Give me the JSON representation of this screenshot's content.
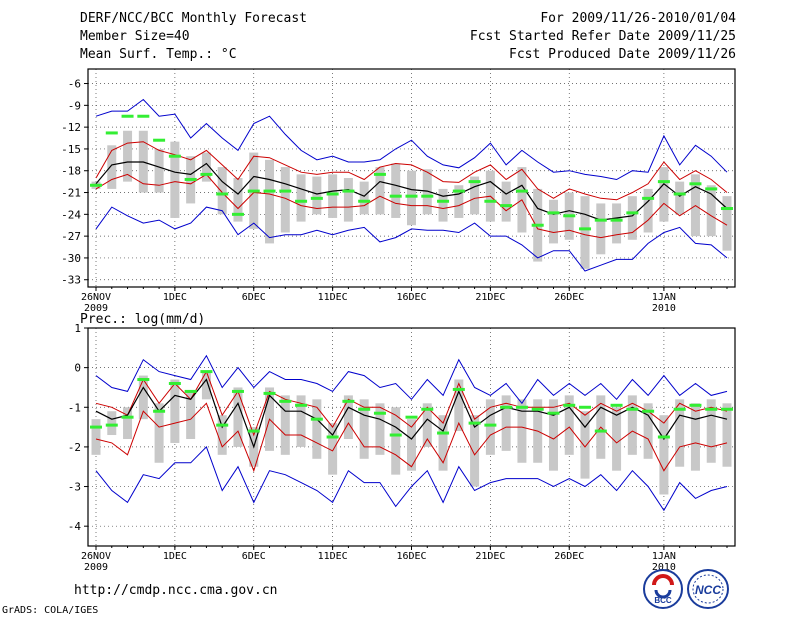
{
  "header": {
    "title": "DERF/NCC/BCC Monthly Forecast",
    "member_size": "Member Size=40",
    "variable1": "Mean Surf. Temp.: °C",
    "forecast_period": "For 2009/11/26-2010/01/04",
    "started_date": "Fcst Started Refer Date 2009/11/25",
    "produced_date": "Fcst Produced Date 2009/11/26"
  },
  "footer": {
    "url": "http://cmdp.ncc.cma.gov.cn",
    "grads_credit": "GrADS: COLA/IGES",
    "logo_bcc": "BCC",
    "logo_ncc": "NCC"
  },
  "colors": {
    "envelope": "#0000cc",
    "spread": "#cc0000",
    "mean": "#000000",
    "box": "#c8c8c8",
    "median": "#33ee33"
  },
  "chart_data": [
    {
      "type": "line",
      "title": "Mean Surf. Temp.: °C",
      "x_labels": [
        {
          "i": 0,
          "l1": "26NOV",
          "l2": "2009"
        },
        {
          "i": 5,
          "l1": "1DEC",
          "l2": ""
        },
        {
          "i": 10,
          "l1": "6DEC",
          "l2": ""
        },
        {
          "i": 15,
          "l1": "11DEC",
          "l2": ""
        },
        {
          "i": 20,
          "l1": "16DEC",
          "l2": ""
        },
        {
          "i": 25,
          "l1": "21DEC",
          "l2": ""
        },
        {
          "i": 30,
          "l1": "26DEC",
          "l2": ""
        },
        {
          "i": 36,
          "l1": "1JAN",
          "l2": "2010"
        }
      ],
      "yticks": [
        -6,
        -9,
        -12,
        -15,
        -18,
        -21,
        -24,
        -27,
        -30,
        -33
      ],
      "ylim": [
        -34,
        -4
      ],
      "series": [
        {
          "name": "max",
          "color": "#0000cc",
          "values": [
            -10.5,
            -9.8,
            -9.8,
            -8.2,
            -10.5,
            -10.2,
            -13.5,
            -11.5,
            -13.5,
            -15.2,
            -11.5,
            -10.5,
            -13.0,
            -15.2,
            -16.5,
            -16.0,
            -16.8,
            -16.8,
            -16.5,
            -15.0,
            -13.8,
            -16.0,
            -17.2,
            -17.6,
            -16.2,
            -14.2,
            -17.2,
            -15.2,
            -16.8,
            -18.2,
            -18.0,
            -18.5,
            -18.8,
            -19.2,
            -18.0,
            -18.2,
            -13.2,
            -17.2,
            -14.5,
            -16.0,
            -18.2
          ]
        },
        {
          "name": "upper",
          "color": "#cc0000",
          "values": [
            -19.0,
            -15.2,
            -14.2,
            -14.0,
            -15.2,
            -15.8,
            -16.5,
            -15.2,
            -17.2,
            -19.2,
            -16.0,
            -16.2,
            -17.2,
            -18.2,
            -18.5,
            -18.2,
            -18.2,
            -19.2,
            -17.5,
            -17.0,
            -17.2,
            -18.2,
            -19.5,
            -19.6,
            -18.2,
            -17.2,
            -19.2,
            -17.8,
            -20.5,
            -21.8,
            -20.5,
            -21.2,
            -21.8,
            -22.0,
            -21.0,
            -19.8,
            -16.8,
            -19.2,
            -18.0,
            -19.2,
            -21.0
          ]
        },
        {
          "name": "mean",
          "color": "#000000",
          "values": [
            -19.8,
            -17.2,
            -16.8,
            -16.8,
            -17.5,
            -18.2,
            -18.5,
            -17.0,
            -19.5,
            -21.2,
            -18.8,
            -19.2,
            -19.8,
            -20.5,
            -21.2,
            -20.8,
            -20.6,
            -21.5,
            -19.5,
            -20.0,
            -20.6,
            -20.8,
            -21.5,
            -21.2,
            -20.2,
            -19.5,
            -21.2,
            -20.0,
            -23.2,
            -24.0,
            -23.5,
            -24.0,
            -24.8,
            -24.5,
            -24.2,
            -22.2,
            -19.8,
            -21.5,
            -20.2,
            -21.2,
            -23.2
          ]
        },
        {
          "name": "lower",
          "color": "#cc0000",
          "values": [
            -20.5,
            -19.2,
            -18.5,
            -19.8,
            -20.0,
            -19.5,
            -19.8,
            -18.5,
            -21.0,
            -23.2,
            -21.0,
            -21.2,
            -21.8,
            -22.8,
            -23.2,
            -23.0,
            -23.0,
            -22.8,
            -21.5,
            -22.5,
            -22.8,
            -22.8,
            -23.2,
            -22.8,
            -21.8,
            -21.5,
            -23.5,
            -22.0,
            -26.0,
            -26.5,
            -26.2,
            -26.8,
            -27.2,
            -26.8,
            -26.5,
            -24.8,
            -22.5,
            -24.2,
            -22.8,
            -24.2,
            -25.5
          ]
        },
        {
          "name": "min",
          "color": "#0000cc",
          "values": [
            -26.0,
            -23.0,
            -24.2,
            -25.2,
            -24.8,
            -26.0,
            -25.2,
            -23.0,
            -23.5,
            -26.8,
            -25.2,
            -27.2,
            -26.8,
            -26.8,
            -26.2,
            -26.8,
            -26.2,
            -25.8,
            -27.8,
            -27.2,
            -26.0,
            -26.2,
            -26.2,
            -26.5,
            -25.2,
            -27.0,
            -27.0,
            -28.2,
            -30.0,
            -29.0,
            -29.0,
            -31.8,
            -31.0,
            -30.2,
            -30.2,
            -28.0,
            -26.5,
            -25.8,
            -28.0,
            -28.2,
            -30.0
          ]
        },
        {
          "name": "box_top",
          "values": [
            -19.5,
            -14.5,
            -12.5,
            -12.5,
            -15.0,
            -14.0,
            -16.0,
            -15.5,
            -17.5,
            -19.0,
            -15.5,
            -16.5,
            -17.5,
            -18.5,
            -18.8,
            -18.5,
            -19.0,
            -19.5,
            -17.5,
            -17.0,
            -18.0,
            -17.8,
            -20.5,
            -20.0,
            -18.8,
            -18.0,
            -19.5,
            -17.5,
            -20.5,
            -22.0,
            -21.0,
            -21.5,
            -22.5,
            -22.5,
            -21.5,
            -20.5,
            -17.5,
            -19.5,
            -18.5,
            -20.0,
            -21.5
          ]
        },
        {
          "name": "box_bottom",
          "values": [
            -20.5,
            -20.5,
            -19.5,
            -21.0,
            -21.0,
            -24.5,
            -22.5,
            -19.5,
            -24.0,
            -25.0,
            -26.0,
            -28.0,
            -26.5,
            -25.0,
            -24.0,
            -24.5,
            -25.0,
            -24.0,
            -24.0,
            -24.5,
            -25.5,
            -24.0,
            -25.0,
            -24.5,
            -24.0,
            -25.0,
            -25.0,
            -26.5,
            -30.5,
            -28.0,
            -27.5,
            -31.5,
            -29.5,
            -28.0,
            -27.5,
            -26.5,
            -25.0,
            -24.0,
            -27.0,
            -27.0,
            -29.0
          ]
        },
        {
          "name": "median",
          "values": [
            -20.0,
            -12.8,
            -10.5,
            -10.5,
            -13.8,
            -16.0,
            -19.2,
            -18.5,
            -21.2,
            -24.0,
            -20.8,
            -20.8,
            -20.8,
            -22.2,
            -21.8,
            -21.2,
            -20.8,
            -22.2,
            -18.5,
            -21.5,
            -21.5,
            -21.5,
            -22.2,
            -20.8,
            -19.5,
            -22.2,
            -22.8,
            -20.8,
            -25.5,
            -23.8,
            -24.2,
            -26.0,
            -24.8,
            -24.8,
            -23.8,
            -21.8,
            -19.5,
            -21.2,
            -19.8,
            -20.5,
            -23.2
          ]
        }
      ]
    },
    {
      "type": "line",
      "title": "Prec.: log(mm/d)",
      "x_labels": [
        {
          "i": 0,
          "l1": "26NOV",
          "l2": "2009"
        },
        {
          "i": 5,
          "l1": "1DEC",
          "l2": ""
        },
        {
          "i": 10,
          "l1": "6DEC",
          "l2": ""
        },
        {
          "i": 15,
          "l1": "11DEC",
          "l2": ""
        },
        {
          "i": 20,
          "l1": "16DEC",
          "l2": ""
        },
        {
          "i": 25,
          "l1": "21DEC",
          "l2": ""
        },
        {
          "i": 30,
          "l1": "26DEC",
          "l2": ""
        },
        {
          "i": 36,
          "l1": "1JAN",
          "l2": "2010"
        }
      ],
      "yticks": [
        1,
        0,
        -1,
        -2,
        -3,
        -4
      ],
      "ylim": [
        -4.5,
        1
      ],
      "series": [
        {
          "name": "max",
          "color": "#0000cc",
          "values": [
            -0.2,
            -0.5,
            -0.6,
            0.2,
            -0.1,
            -0.2,
            -0.3,
            0.3,
            -0.5,
            0.0,
            -0.5,
            -0.1,
            -0.3,
            -0.3,
            -0.4,
            -0.6,
            -0.1,
            -0.2,
            -0.5,
            -0.4,
            -0.8,
            -0.3,
            -0.7,
            0.2,
            -0.5,
            -0.7,
            -0.4,
            -0.9,
            -0.3,
            -0.7,
            -0.4,
            -0.7,
            -0.4,
            -0.8,
            -0.3,
            -0.7,
            -0.2,
            -0.7,
            -0.4,
            -0.7,
            -0.6
          ]
        },
        {
          "name": "upper",
          "color": "#cc0000",
          "values": [
            -0.9,
            -1.0,
            -1.2,
            -0.3,
            -0.9,
            -0.4,
            -0.8,
            -0.1,
            -1.2,
            -0.6,
            -1.7,
            -0.6,
            -0.8,
            -0.9,
            -1.0,
            -1.5,
            -0.8,
            -1.0,
            -1.0,
            -1.2,
            -1.5,
            -1.0,
            -1.4,
            -0.4,
            -1.3,
            -1.0,
            -0.9,
            -1.0,
            -1.0,
            -1.0,
            -0.9,
            -1.2,
            -0.9,
            -1.1,
            -0.9,
            -1.1,
            -1.4,
            -0.9,
            -1.1,
            -1.0,
            -1.1
          ]
        },
        {
          "name": "mean",
          "color": "#000000",
          "values": [
            -1.1,
            -1.3,
            -1.2,
            -0.5,
            -1.1,
            -0.7,
            -0.8,
            -0.3,
            -1.5,
            -0.9,
            -2.0,
            -0.7,
            -1.1,
            -1.1,
            -1.3,
            -1.7,
            -1.0,
            -1.2,
            -1.3,
            -1.5,
            -1.8,
            -1.3,
            -1.6,
            -0.6,
            -1.5,
            -1.2,
            -1.0,
            -1.1,
            -1.1,
            -1.2,
            -1.0,
            -1.5,
            -1.0,
            -1.2,
            -1.0,
            -1.2,
            -1.8,
            -1.2,
            -1.3,
            -1.2,
            -1.3
          ]
        },
        {
          "name": "lower",
          "color": "#cc0000",
          "values": [
            -1.8,
            -1.9,
            -2.2,
            -1.1,
            -1.5,
            -1.4,
            -1.3,
            -0.9,
            -2.0,
            -1.6,
            -2.6,
            -1.3,
            -1.7,
            -1.7,
            -1.9,
            -2.1,
            -1.4,
            -2.0,
            -2.0,
            -2.2,
            -2.5,
            -1.8,
            -2.4,
            -1.4,
            -2.2,
            -1.7,
            -1.5,
            -1.5,
            -1.6,
            -1.8,
            -1.5,
            -2.0,
            -1.5,
            -1.9,
            -1.6,
            -1.8,
            -2.6,
            -2.0,
            -1.9,
            -2.0,
            -1.9
          ]
        },
        {
          "name": "min",
          "color": "#0000cc",
          "values": [
            -2.6,
            -3.1,
            -3.4,
            -2.7,
            -2.8,
            -2.4,
            -2.4,
            -2.0,
            -3.1,
            -2.5,
            -3.4,
            -2.6,
            -2.7,
            -2.9,
            -3.1,
            -3.4,
            -2.6,
            -2.9,
            -2.9,
            -3.5,
            -3.0,
            -2.6,
            -3.4,
            -2.5,
            -3.1,
            -2.9,
            -2.8,
            -2.8,
            -2.8,
            -3.0,
            -2.8,
            -3.0,
            -2.7,
            -3.1,
            -2.6,
            -3.0,
            -3.6,
            -2.9,
            -3.3,
            -3.1,
            -3.0
          ]
        },
        {
          "name": "box_top",
          "values": [
            -1.3,
            -1.1,
            -1.0,
            -0.2,
            -0.9,
            -0.3,
            -0.6,
            -0.1,
            -1.2,
            -0.5,
            -1.5,
            -0.5,
            -0.7,
            -0.7,
            -0.8,
            -1.4,
            -0.7,
            -0.8,
            -0.9,
            -1.0,
            -1.3,
            -0.9,
            -1.2,
            -0.3,
            -1.2,
            -0.8,
            -0.7,
            -0.8,
            -0.8,
            -0.8,
            -0.7,
            -1.1,
            -0.7,
            -1.0,
            -0.7,
            -0.9,
            -1.2,
            -0.8,
            -0.9,
            -0.8,
            -0.9
          ]
        },
        {
          "name": "box_bottom",
          "values": [
            -2.2,
            -1.7,
            -1.8,
            -1.3,
            -2.4,
            -1.9,
            -1.8,
            -0.8,
            -2.2,
            -2.0,
            -2.5,
            -2.1,
            -2.2,
            -2.0,
            -2.3,
            -2.7,
            -1.8,
            -2.3,
            -2.2,
            -2.7,
            -2.6,
            -2.0,
            -2.6,
            -1.6,
            -3.0,
            -2.2,
            -2.1,
            -2.4,
            -2.4,
            -2.6,
            -2.2,
            -2.8,
            -2.3,
            -2.6,
            -2.2,
            -2.3,
            -3.2,
            -2.5,
            -2.6,
            -2.4,
            -2.5
          ]
        },
        {
          "name": "median",
          "values": [
            -1.5,
            -1.45,
            -1.25,
            -0.3,
            -1.1,
            -0.4,
            -0.6,
            -0.1,
            -1.45,
            -0.6,
            -1.6,
            -0.65,
            -0.85,
            -0.95,
            -1.3,
            -1.75,
            -0.85,
            -1.05,
            -1.15,
            -1.7,
            -1.25,
            -1.05,
            -1.65,
            -0.55,
            -1.4,
            -1.45,
            -1.0,
            -1.0,
            -1.05,
            -1.15,
            -0.95,
            -1.0,
            -1.6,
            -0.95,
            -1.05,
            -1.1,
            -1.75,
            -1.05,
            -0.95,
            -1.05,
            -1.05
          ]
        }
      ]
    }
  ]
}
